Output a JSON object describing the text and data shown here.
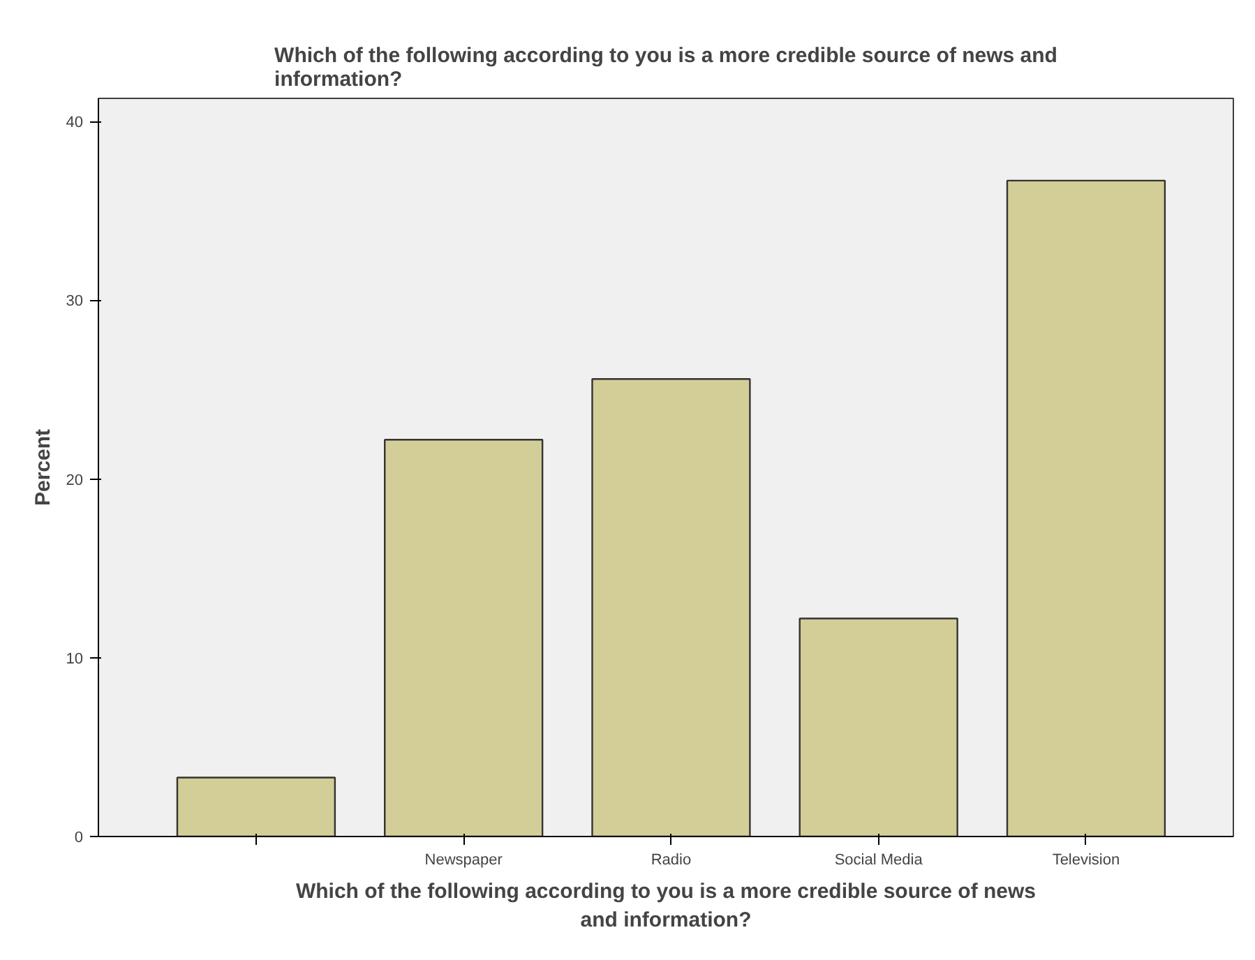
{
  "chart_data": {
    "type": "bar",
    "title": "Which of the following according to you is a more credible source of news and information?",
    "xlabel": "Which of the following according to you is a more credible source of news and information?",
    "ylabel": "Percent",
    "categories": [
      null,
      "Newspaper",
      "Radio",
      "Social Media",
      "Television"
    ],
    "values": [
      3.3,
      22.2,
      25.6,
      12.2,
      36.7
    ],
    "color": "#d3ce97",
    "ylim": [
      0,
      41.3
    ],
    "yticks": [
      0,
      10,
      20,
      30,
      40
    ],
    "grid": false
  }
}
